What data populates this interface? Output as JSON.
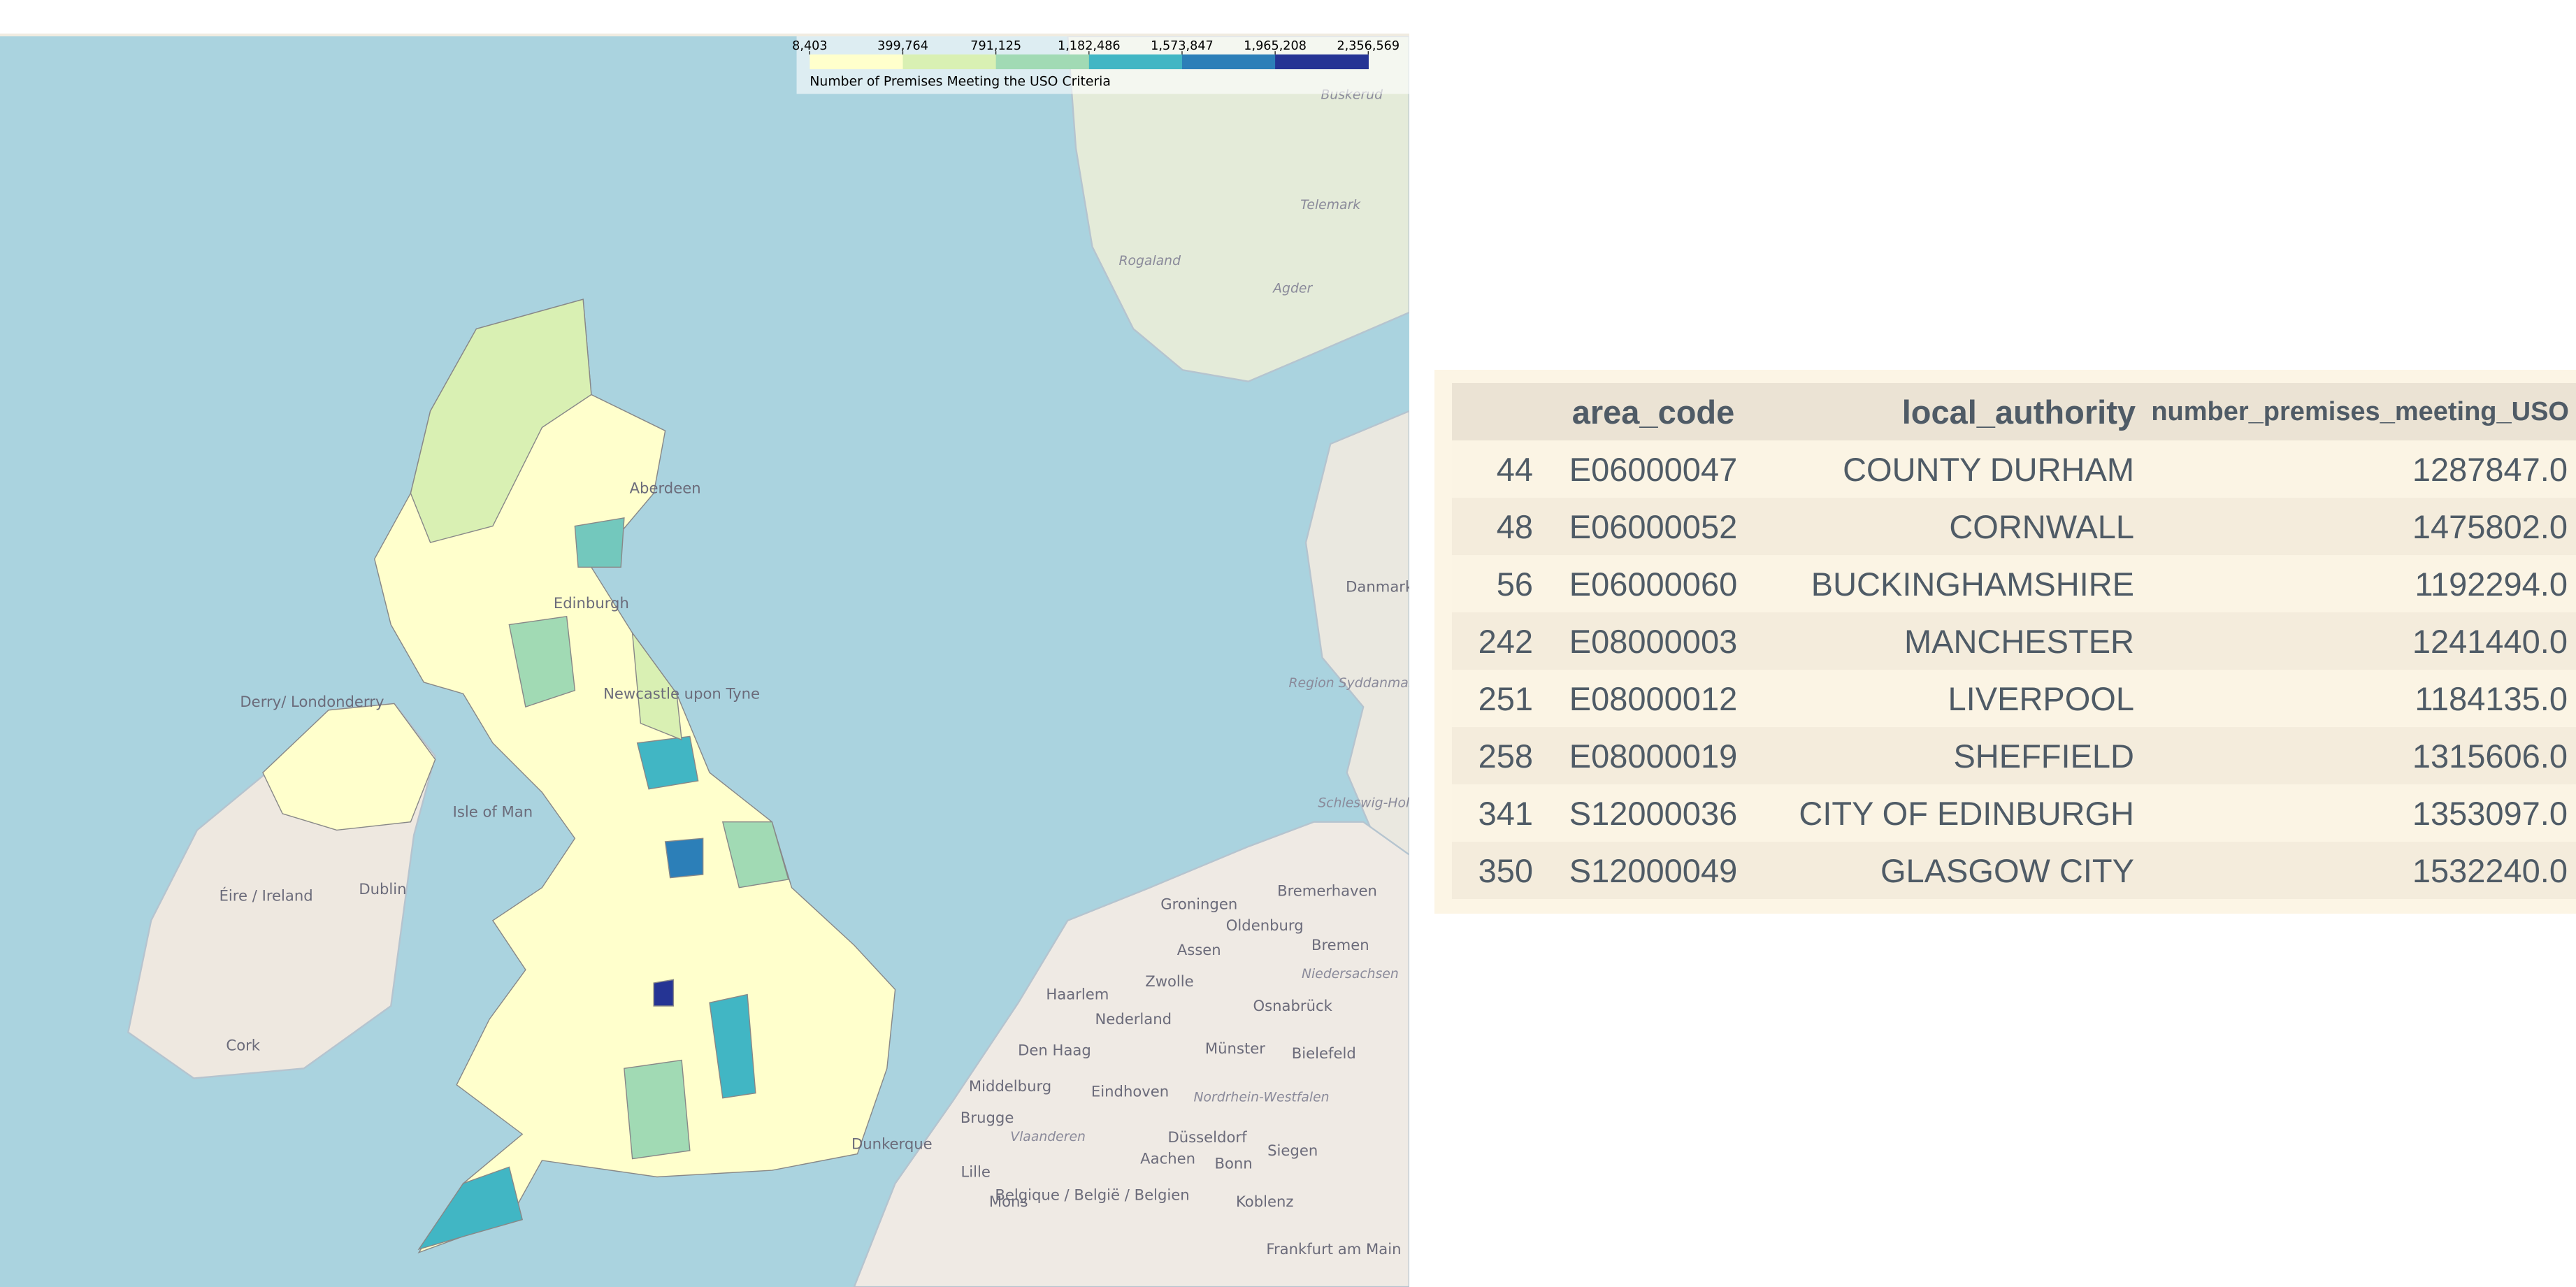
{
  "legend": {
    "ticks": [
      "8,403",
      "399,764",
      "791,125",
      "1,182,486",
      "1,573,847",
      "1,965,208",
      "2,356,569"
    ],
    "colors": [
      "#ffffcc",
      "#d9f0b3",
      "#a1dab4",
      "#41b6c4",
      "#2c7fb8",
      "#253494"
    ],
    "caption": "Number of Premises Meeting the USO Criteria"
  },
  "map_labels": [
    "Buskerud",
    "Telemark",
    "Rogaland",
    "Agder",
    "Aberdeen",
    "Edinburgh",
    "Newcastle upon Tyne",
    "Derry/ Londonderry",
    "Isle of Man",
    "Dublin",
    "Éire / Ireland",
    "Cork",
    "Danmark",
    "Region Syddanmark",
    "Schleswig-Holstein",
    "Groningen",
    "Bremerhaven",
    "Oldenburg",
    "Bremen",
    "Assen",
    "Niedersachsen",
    "Haarlem",
    "Zwolle",
    "Osnabrück",
    "Den Haag",
    "Nederland",
    "Münster",
    "Bielefeld",
    "Middelburg",
    "Eindhoven",
    "Nordrhein-Westfalen",
    "Brugge",
    "Vlaanderen",
    "Düsseldorf",
    "Dunkerque",
    "Lille",
    "Aachen",
    "Bonn",
    "Siegen",
    "Belgique / België / Belgien",
    "Mons",
    "Koblenz",
    "Frankfurt am Main"
  ],
  "table": {
    "header": [
      "area_code",
      "local_authority",
      "number_premises_meeting_USO"
    ],
    "rows": [
      [
        "44",
        "E06000047",
        "COUNTY DURHAM",
        "1287847.0"
      ],
      [
        "48",
        "E06000052",
        "CORNWALL",
        "1475802.0"
      ],
      [
        "56",
        "E06000060",
        "BUCKINGHAMSHIRE",
        "1192294.0"
      ],
      [
        "242",
        "E08000003",
        "MANCHESTER",
        "1241440.0"
      ],
      [
        "251",
        "E08000012",
        "LIVERPOOL",
        "1184135.0"
      ],
      [
        "258",
        "E08000019",
        "SHEFFIELD",
        "1315606.0"
      ],
      [
        "341",
        "S12000036",
        "CITY OF EDINBURGH",
        "1353097.0"
      ],
      [
        "350",
        "S12000049",
        "GLASGOW CITY",
        "1532240.0"
      ]
    ]
  }
}
